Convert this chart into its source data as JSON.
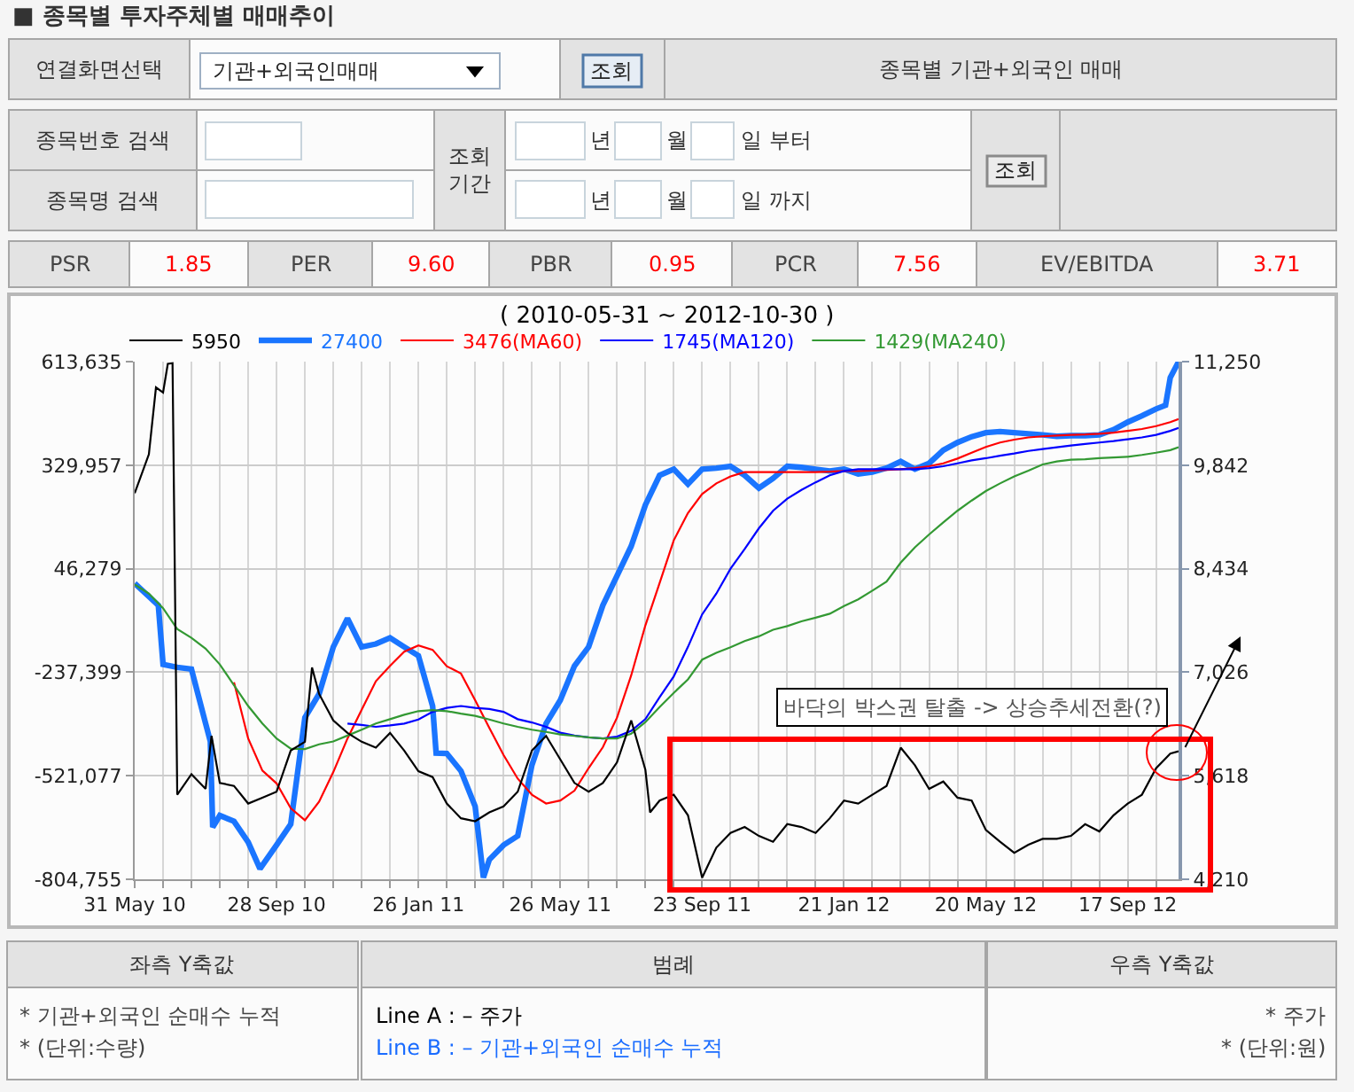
{
  "chart_data": [
    {
      "type": "other",
      "title": "■ 종목별 투자주체별 매매추이",
      "annotations": [
        "연결화면선택",
        "기관+외국인매매",
        "조회",
        "종목별 기관+외국인 매매",
        "종목번호 검색",
        "종목명 검색",
        "조회\n기간",
        "년",
        "월",
        "일 부터",
        "년",
        "월",
        "일 까지",
        "조회",
        "PSR",
        "1.85",
        "PER",
        "9.60",
        "PBR",
        "0.95",
        "PCR",
        "7.56",
        "EV/EBITDA",
        "3.71"
      ]
    },
    {
      "type": "line",
      "title": "( 2010-05-31 ~ 2012-10-30 )",
      "x": [
        "2010-05-31",
        "2010-06-12",
        "2010-06-24",
        "2010-07-06",
        "2010-07-18",
        "2010-07-30",
        "2010-08-11",
        "2010-08-23",
        "2010-09-04",
        "2010-09-16",
        "2010-09-28",
        "2010-10-10",
        "2010-10-22",
        "2010-11-03",
        "2010-11-15",
        "2010-11-27",
        "2010-12-09",
        "2010-12-21",
        "2011-01-02",
        "2011-01-14",
        "2011-01-26",
        "2011-02-07",
        "2011-02-19",
        "2011-03-03",
        "2011-03-15",
        "2011-03-27",
        "2011-04-08",
        "2011-04-20",
        "2011-05-02",
        "2011-05-14",
        "2011-05-26",
        "2011-06-07",
        "2011-06-19",
        "2011-07-01",
        "2011-07-13",
        "2011-07-25",
        "2011-08-06",
        "2011-08-18",
        "2011-08-30",
        "2011-09-11",
        "2011-09-23",
        "2011-10-05",
        "2011-10-17",
        "2011-10-29",
        "2011-11-10",
        "2011-11-22",
        "2011-12-04",
        "2011-12-16",
        "2011-12-28",
        "2012-01-09",
        "2012-01-21",
        "2012-02-02",
        "2012-02-14",
        "2012-02-26",
        "2012-03-09",
        "2012-03-21",
        "2012-04-02",
        "2012-04-14",
        "2012-04-26",
        "2012-05-08",
        "2012-05-20",
        "2012-06-01",
        "2012-06-13",
        "2012-06-25",
        "2012-07-07",
        "2012-07-19",
        "2012-07-31",
        "2012-08-12",
        "2012-08-24",
        "2012-09-05",
        "2012-09-17",
        "2012-09-29",
        "2012-10-11",
        "2012-10-23",
        "2012-10-30"
      ],
      "xlim": [
        "2010-05-31",
        "2012-10-30"
      ],
      "xticks": [
        {
          "value": "2010-05-31",
          "label": "31 May 10"
        },
        {
          "value": "2010-06-24",
          "label": null
        },
        {
          "value": "2010-07-18",
          "label": null
        },
        {
          "value": "2010-08-11",
          "label": null
        },
        {
          "value": "2010-09-04",
          "label": null
        },
        {
          "value": "2010-09-28",
          "label": "28 Sep 10"
        },
        {
          "value": "2010-10-22",
          "label": null
        },
        {
          "value": "2010-11-15",
          "label": null
        },
        {
          "value": "2010-12-09",
          "label": null
        },
        {
          "value": "2011-01-02",
          "label": null
        },
        {
          "value": "2011-01-26",
          "label": "26 Jan 11"
        },
        {
          "value": "2011-02-19",
          "label": null
        },
        {
          "value": "2011-03-15",
          "label": null
        },
        {
          "value": "2011-04-08",
          "label": null
        },
        {
          "value": "2011-05-02",
          "label": null
        },
        {
          "value": "2011-05-26",
          "label": "26 May 11"
        },
        {
          "value": "2011-06-19",
          "label": null
        },
        {
          "value": "2011-07-13",
          "label": null
        },
        {
          "value": "2011-08-06",
          "label": null
        },
        {
          "value": "2011-08-30",
          "label": null
        },
        {
          "value": "2011-09-23",
          "label": "23 Sep 11"
        },
        {
          "value": "2011-10-17",
          "label": null
        },
        {
          "value": "2011-11-10",
          "label": null
        },
        {
          "value": "2011-12-04",
          "label": null
        },
        {
          "value": "2011-12-28",
          "label": null
        },
        {
          "value": "2012-01-21",
          "label": "21 Jan 12"
        },
        {
          "value": "2012-02-14",
          "label": null
        },
        {
          "value": "2012-03-09",
          "label": null
        },
        {
          "value": "2012-04-02",
          "label": null
        },
        {
          "value": "2012-04-26",
          "label": null
        },
        {
          "value": "2012-05-20",
          "label": "20 May 12"
        },
        {
          "value": "2012-06-13",
          "label": null
        },
        {
          "value": "2012-07-07",
          "label": null
        },
        {
          "value": "2012-07-31",
          "label": null
        },
        {
          "value": "2012-08-24",
          "label": null
        },
        {
          "value": "2012-09-17",
          "label": "17 Sep 12"
        },
        {
          "value": "2012-10-11",
          "label": null
        }
      ],
      "ylim": [
        -804755,
        613635
      ],
      "yticks": [
        {
          "value": 613635,
          "label": "613,635"
        },
        {
          "value": 329957,
          "label": "329,957"
        },
        {
          "value": 46279,
          "label": "46,279"
        },
        {
          "value": -237399,
          "label": "-237,399"
        },
        {
          "value": -521077,
          "label": "-521,077"
        },
        {
          "value": -804755,
          "label": "-804,755"
        }
      ],
      "y2lim": [
        4210,
        11250
      ],
      "y2ticks": [
        {
          "value": 11250,
          "label": "11,250"
        },
        {
          "value": 9842,
          "label": "9,842"
        },
        {
          "value": 8434,
          "label": "8,434"
        },
        {
          "value": 7026,
          "label": "7,026"
        },
        {
          "value": 5618,
          "label": "5,618"
        },
        {
          "value": 4210,
          "label": "4,210"
        }
      ],
      "grid": true,
      "legend": "top",
      "series": [
        {
          "name": "5950",
          "color": "#000000",
          "axis": "y2",
          "x": [
            "2010-05-31",
            "2010-06-12",
            "2010-06-18",
            "2010-06-24",
            "2010-06-28",
            "2010-07-02",
            "2010-07-06",
            "2010-07-18",
            "2010-07-30",
            "2010-08-04",
            "2010-08-11",
            "2010-08-23",
            "2010-09-04",
            "2010-09-16",
            "2010-09-28",
            "2010-10-10",
            "2010-10-22",
            "2010-10-28",
            "2010-11-03",
            "2010-11-15",
            "2010-11-27",
            "2010-12-09",
            "2010-12-21",
            "2011-01-02",
            "2011-01-14",
            "2011-01-26",
            "2011-02-07",
            "2011-02-19",
            "2011-03-03",
            "2011-03-15",
            "2011-03-27",
            "2011-04-08",
            "2011-04-20",
            "2011-05-02",
            "2011-05-14",
            "2011-05-26",
            "2011-06-07",
            "2011-06-19",
            "2011-07-01",
            "2011-07-13",
            "2011-07-25",
            "2011-08-06",
            "2011-08-10",
            "2011-08-18",
            "2011-08-30",
            "2011-09-11",
            "2011-09-23",
            "2011-10-05",
            "2011-10-17",
            "2011-10-29",
            "2011-11-10",
            "2011-11-22",
            "2011-12-04",
            "2011-12-16",
            "2011-12-28",
            "2012-01-09",
            "2012-01-21",
            "2012-02-02",
            "2012-02-14",
            "2012-02-26",
            "2012-03-09",
            "2012-03-21",
            "2012-04-02",
            "2012-04-14",
            "2012-04-26",
            "2012-05-08",
            "2012-05-20",
            "2012-06-01",
            "2012-06-13",
            "2012-06-25",
            "2012-07-07",
            "2012-07-19",
            "2012-07-31",
            "2012-08-12",
            "2012-08-24",
            "2012-09-05",
            "2012-09-17",
            "2012-09-29",
            "2012-10-11",
            "2012-10-23",
            "2012-10-30"
          ],
          "values": [
            9460,
            9990,
            10900,
            10830,
            11220,
            11230,
            5360,
            5640,
            5440,
            6160,
            5520,
            5480,
            5240,
            5320,
            5400,
            5960,
            6080,
            7090,
            6730,
            6370,
            6200,
            6080,
            6000,
            6200,
            5960,
            5680,
            5600,
            5240,
            5040,
            5000,
            5120,
            5200,
            5400,
            5960,
            6160,
            5840,
            5520,
            5400,
            5520,
            5800,
            6370,
            5700,
            5120,
            5280,
            5360,
            5080,
            4230,
            4640,
            4840,
            4920,
            4800,
            4720,
            4960,
            4920,
            4840,
            5040,
            5280,
            5240,
            5360,
            5480,
            6000,
            5760,
            5440,
            5540,
            5320,
            5280,
            4880,
            4720,
            4570,
            4680,
            4760,
            4760,
            4800,
            4960,
            4860,
            5080,
            5240,
            5360,
            5720,
            5920,
            5950
          ]
        },
        {
          "name": "27400",
          "color": "#1a75ff",
          "x": [
            "2010-05-31",
            "2010-06-12",
            "2010-06-20",
            "2010-06-24",
            "2010-07-06",
            "2010-07-18",
            "2010-07-30",
            "2010-08-03",
            "2010-08-05",
            "2010-08-11",
            "2010-08-23",
            "2010-09-04",
            "2010-09-14",
            "2010-09-28",
            "2010-10-10",
            "2010-10-22",
            "2010-11-03",
            "2010-11-15",
            "2010-11-27",
            "2010-12-09",
            "2010-12-21",
            "2011-01-02",
            "2011-01-14",
            "2011-01-26",
            "2011-02-07",
            "2011-02-10",
            "2011-02-19",
            "2011-03-03",
            "2011-03-15",
            "2011-03-22",
            "2011-03-27",
            "2011-04-08",
            "2011-04-20",
            "2011-05-02",
            "2011-05-14",
            "2011-05-26",
            "2011-06-07",
            "2011-06-19",
            "2011-07-01",
            "2011-07-13",
            "2011-07-25",
            "2011-08-06",
            "2011-08-18",
            "2011-08-30",
            "2011-09-11",
            "2011-09-23",
            "2011-10-05",
            "2011-10-17",
            "2011-10-29",
            "2011-11-10",
            "2011-11-22",
            "2011-12-04",
            "2011-12-16",
            "2011-12-28",
            "2012-01-09",
            "2012-01-21",
            "2012-02-02",
            "2012-02-14",
            "2012-02-26",
            "2012-03-09",
            "2012-03-21",
            "2012-04-02",
            "2012-04-14",
            "2012-04-26",
            "2012-05-08",
            "2012-05-20",
            "2012-06-01",
            "2012-06-13",
            "2012-06-25",
            "2012-07-07",
            "2012-07-19",
            "2012-07-31",
            "2012-08-12",
            "2012-08-24",
            "2012-09-05",
            "2012-09-17",
            "2012-09-29",
            "2012-10-11",
            "2012-10-19",
            "2012-10-23",
            "2012-10-30"
          ],
          "values": [
            6000,
            -30000,
            -54000,
            -216000,
            -224000,
            -229000,
            -378000,
            -427000,
            -662000,
            -630000,
            -646000,
            -703000,
            -776000,
            -711000,
            -654000,
            -362000,
            -297000,
            -168000,
            -90000,
            -168000,
            -160000,
            -143000,
            -168000,
            -192000,
            -330000,
            -459000,
            -460000,
            -508000,
            -605000,
            -800000,
            -751000,
            -711000,
            -686000,
            -492000,
            -378000,
            -314000,
            -220000,
            -168000,
            -54000,
            27000,
            108000,
            221000,
            302000,
            319000,
            278000,
            319000,
            322000,
            327000,
            302000,
            267000,
            294000,
            327000,
            324000,
            319000,
            314000,
            319000,
            306000,
            311000,
            322000,
            340000,
            319000,
            335000,
            371000,
            392000,
            408000,
            419000,
            422000,
            419000,
            416000,
            413000,
            409000,
            411000,
            411000,
            413000,
            427000,
            448000,
            465000,
            484000,
            494000,
            570000,
            613000
          ]
        },
        {
          "name": "3476(MA60)",
          "color": "#ff0000",
          "values": [
            null,
            null,
            null,
            null,
            null,
            null,
            null,
            -265000,
            -419000,
            -507000,
            -542000,
            -610000,
            -643000,
            -592000,
            -511000,
            -419000,
            -340000,
            -262000,
            -220000,
            -181000,
            -164000,
            -176000,
            -221000,
            -241000,
            -314000,
            -390000,
            -464000,
            -529000,
            -573000,
            -597000,
            -589000,
            -562000,
            -500000,
            -443000,
            -362000,
            -246000,
            -109000,
            7000,
            124000,
            199000,
            251000,
            280000,
            299000,
            311000,
            311000,
            311000,
            311000,
            311000,
            311000,
            312000,
            314000,
            314000,
            315000,
            317000,
            319000,
            322000,
            327000,
            335000,
            348000,
            364000,
            380000,
            392000,
            400000,
            406000,
            409000,
            411000,
            413000,
            414000,
            416000,
            419000,
            424000,
            429000,
            437000,
            448000,
            456000
          ]
        },
        {
          "name": "1745(MA120)",
          "color": "#0000ff",
          "values": [
            null,
            null,
            null,
            null,
            null,
            null,
            null,
            null,
            null,
            null,
            null,
            null,
            null,
            null,
            null,
            -378000,
            -382000,
            -387000,
            -383000,
            -378000,
            -367000,
            -346000,
            -335000,
            -330000,
            -335000,
            -338000,
            -346000,
            -366000,
            -375000,
            -387000,
            -403000,
            -411000,
            -416000,
            -419000,
            -414000,
            -398000,
            -366000,
            -306000,
            -249000,
            -168000,
            -79000,
            -22000,
            46000,
            100000,
            157000,
            205000,
            238000,
            262000,
            283000,
            302000,
            314000,
            319000,
            319000,
            319000,
            319000,
            319000,
            322000,
            327000,
            335000,
            343000,
            349000,
            356000,
            362000,
            369000,
            374000,
            379000,
            384000,
            388000,
            392000,
            396000,
            401000,
            406000,
            413000,
            424000,
            432000
          ]
        },
        {
          "name": "1429(MA240)",
          "color": "#339933",
          "values": [
            3000,
            -22000,
            -62000,
            -119000,
            -143000,
            -173000,
            -216000,
            -273000,
            -330000,
            -378000,
            -419000,
            -447000,
            -448000,
            -435000,
            -427000,
            -411000,
            -395000,
            -378000,
            -366000,
            -354000,
            -344000,
            -341000,
            -344000,
            -351000,
            -357000,
            -367000,
            -378000,
            -387000,
            -395000,
            -401000,
            -408000,
            -412000,
            -416000,
            -419000,
            -419000,
            -406000,
            -374000,
            -333000,
            -294000,
            -257000,
            -203000,
            -184000,
            -169000,
            -152000,
            -139000,
            -121000,
            -111000,
            -98000,
            -88000,
            -77000,
            -56000,
            -38000,
            -14000,
            11000,
            63000,
            105000,
            140000,
            173000,
            205000,
            233000,
            259000,
            280000,
            299000,
            315000,
            332000,
            340000,
            345000,
            346000,
            349000,
            351000,
            353000,
            358000,
            364000,
            371000,
            379000
          ]
        }
      ],
      "annotations": [
        "바닥의 박스권 탈출 -> 상승추세전환(?)"
      ]
    },
    {
      "type": "other",
      "annotations": [
        "좌측 Y축값",
        "범례",
        "우측 Y축값",
        "* 기관+외국인 순매수 누적",
        "* (단위:수량)",
        "Line A : – 주가",
        "Line B : – 기관+외국인 순매수 누적",
        "* 주가",
        "* (단위:원)"
      ]
    }
  ]
}
